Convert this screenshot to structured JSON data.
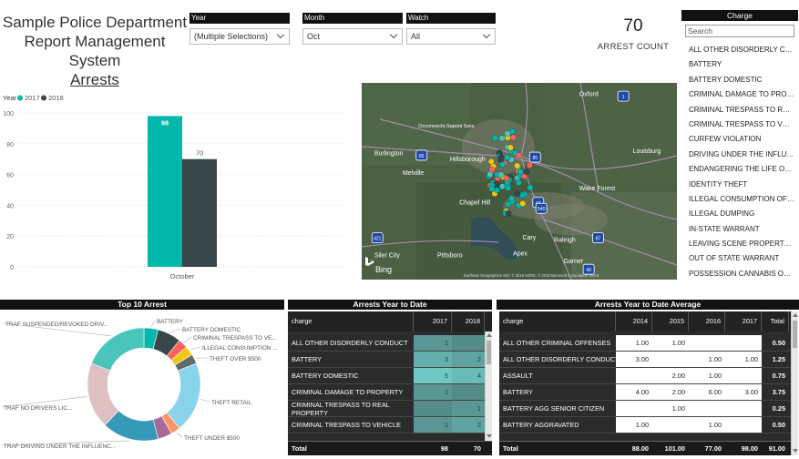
{
  "title": {
    "line1": "Sample Police Department",
    "line2": "Report Management System",
    "line3": "Arrests"
  },
  "slicers": [
    {
      "label": "Year",
      "value": "(Multiple Selections)"
    },
    {
      "label": "Month",
      "value": "Oct"
    },
    {
      "label": "Watch",
      "value": "All"
    }
  ],
  "kpi": {
    "value": "70",
    "label": "ARREST COUNT"
  },
  "charge_panel": {
    "header": "Charge",
    "search_placeholder": "Search",
    "items": [
      "ALL OTHER DISORDERLY CONDUCT",
      "BATTERY",
      "BATTERY DOMESTIC",
      "CRIMINAL DAMAGE TO PROPERTY",
      "CRIMINAL TRESPASS TO REAL PROPERTY",
      "CRIMINAL TRESPASS TO VEHICLE",
      "CURFEW VIOLATION",
      "DRIVING UNDER THE INFLUENCE",
      "ENDANGERING THE LIFE OR HEALTH",
      "IDENTITY THEFT",
      "ILLEGAL CONSUMPTION OF ALCOHOL",
      "ILLEGAL DUMPING",
      "IN-STATE WARRANT",
      "LEAVING SCENE PROPERTY DAMAGE",
      "OUT OF STATE WARRANT",
      "POSSESSION CANNABIS OVER"
    ]
  },
  "map": {
    "attribution": "Earthstar Geographics SIO, © 2018 HERE, © 2018 Microsoft Corporation Terms",
    "logo": "Bing",
    "places": [
      {
        "name": "Oxford",
        "lon": 0.69,
        "lat": 0.03
      },
      {
        "name": "Occoneechi-Saponi Sora",
        "lon": 0.18,
        "lat": 0.19
      },
      {
        "name": "Burlington",
        "lon": 0.04,
        "lat": 0.33
      },
      {
        "name": "Hillsborough",
        "lon": 0.28,
        "lat": 0.36
      },
      {
        "name": "Louisburg",
        "lon": 0.86,
        "lat": 0.32
      },
      {
        "name": "Melville",
        "lon": 0.13,
        "lat": 0.43
      },
      {
        "name": "Wake Forest",
        "lon": 0.69,
        "lat": 0.51
      },
      {
        "name": "Chapel Hill",
        "lon": 0.31,
        "lat": 0.58
      },
      {
        "name": "Cary",
        "lon": 0.51,
        "lat": 0.76
      },
      {
        "name": "Raleigh",
        "lon": 0.61,
        "lat": 0.77
      },
      {
        "name": "Siler City",
        "lon": 0.04,
        "lat": 0.85
      },
      {
        "name": "Pittsboro",
        "lon": 0.24,
        "lat": 0.85
      },
      {
        "name": "Apex",
        "lon": 0.48,
        "lat": 0.84
      },
      {
        "name": "Garner",
        "lon": 0.64,
        "lat": 0.88
      }
    ],
    "shields": [
      {
        "label": "1",
        "lon": 0.83,
        "lat": 0.07
      },
      {
        "label": "85",
        "lon": 0.19,
        "lat": 0.37
      },
      {
        "label": "85",
        "lon": 0.55,
        "lat": 0.38
      },
      {
        "label": "40",
        "lon": 0.56,
        "lat": 0.61
      },
      {
        "label": "540",
        "lon": 0.57,
        "lat": 0.64
      },
      {
        "label": "421",
        "lon": 0.05,
        "lat": 0.79
      },
      {
        "label": "87",
        "lon": 0.75,
        "lat": 0.79
      },
      {
        "label": "40",
        "lon": 0.72,
        "lat": 0.95
      }
    ]
  },
  "chart_data": [
    {
      "type": "bar",
      "legend_title": "Year",
      "legend_position": "top-left",
      "categories": [
        "October"
      ],
      "series": [
        {
          "name": "2017",
          "values": [
            98
          ],
          "color": "#01B8AA"
        },
        {
          "name": "2018",
          "values": [
            70
          ],
          "color": "#374649"
        }
      ],
      "yticks": [
        0,
        20,
        40,
        60,
        80,
        100
      ],
      "ylim": [
        0,
        100
      ]
    },
    {
      "type": "pie",
      "title": "Top 10 Arrest",
      "slices": [
        {
          "name": "BATTERY",
          "value": 3,
          "color": "#01B8AA"
        },
        {
          "name": "BATTERY DOMESTIC",
          "value": 5,
          "color": "#374649"
        },
        {
          "name": "CRIMINAL TRESPASS TO VE...",
          "value": 2,
          "color": "#FD625E"
        },
        {
          "name": "ILLEGAL CONSUMPTION ...",
          "value": 2,
          "color": "#F2C80F"
        },
        {
          "name": "THEFT OVER $500",
          "value": 2,
          "color": "#5F6B6D"
        },
        {
          "name": "THEFT RETAIL",
          "value": 15,
          "color": "#8AD4EB"
        },
        {
          "name": "THEFT UNDER $500",
          "value": 2,
          "color": "#FE9666"
        },
        {
          "name": "",
          "value": 3,
          "color": "#A66999"
        },
        {
          "name": "TRAF DRIVING UNDER THE INFLUENC...",
          "value": 12,
          "color": "#3599B8"
        },
        {
          "name": "TRAF NO DRIVERS LIC...",
          "value": 14,
          "color": "#DFBFBF"
        },
        {
          "name": "TRAF SUSPENDED/REVOKED DRIV...",
          "value": 14,
          "color": "#4AC5BB"
        }
      ]
    }
  ],
  "ytd_table": {
    "title": "Arrests Year to Date",
    "columns": [
      "charge",
      "2017",
      "2018"
    ],
    "rows": [
      [
        "ALL OTHER DISORDERLY CONDUCT",
        "1",
        ""
      ],
      [
        "BATTERY",
        "3",
        "2"
      ],
      [
        "BATTERY DOMESTIC",
        "5",
        "4"
      ],
      [
        "CRIMINAL DAMAGE TO PROPERTY",
        "1",
        ""
      ],
      [
        "CRIMINAL TRESPASS TO REAL PROPERTY",
        "",
        "1"
      ],
      [
        "CRIMINAL TRESPASS TO VEHICLE",
        "1",
        "2"
      ]
    ],
    "heat": [
      [
        0.15,
        0
      ],
      [
        0.45,
        0.3
      ],
      [
        0.75,
        0.6
      ],
      [
        0.15,
        0
      ],
      [
        0,
        0.15
      ],
      [
        0.15,
        0.3
      ]
    ],
    "total": [
      "Total",
      "98",
      "70"
    ]
  },
  "avg_table": {
    "title": "Arrests Year to Date Average",
    "columns": [
      "charge",
      "2014",
      "2015",
      "2016",
      "2017",
      "Total"
    ],
    "rows": [
      [
        "ALL OTHER CRIMINAL OFFENSES",
        "1.00",
        "1.00",
        "",
        "",
        "0.50"
      ],
      [
        "ALL OTHER DISORDERLY CONDUCT",
        "3.00",
        "",
        "1.00",
        "1.00",
        "1.25"
      ],
      [
        "ASSAULT",
        "",
        "2.00",
        "1.00",
        "",
        "0.75"
      ],
      [
        "BATTERY",
        "4.00",
        "2.00",
        "6.00",
        "3.00",
        "3.75"
      ],
      [
        "BATTERY AGG SENIOR CITIZEN",
        "",
        "1.00",
        "",
        "",
        "0.25"
      ],
      [
        "BATTERY AGGRAVATED",
        "1.00",
        "",
        "1.00",
        "",
        "0.50"
      ]
    ],
    "total": [
      "Total",
      "88.00",
      "101.00",
      "77.00",
      "98.00",
      "91.00"
    ]
  }
}
